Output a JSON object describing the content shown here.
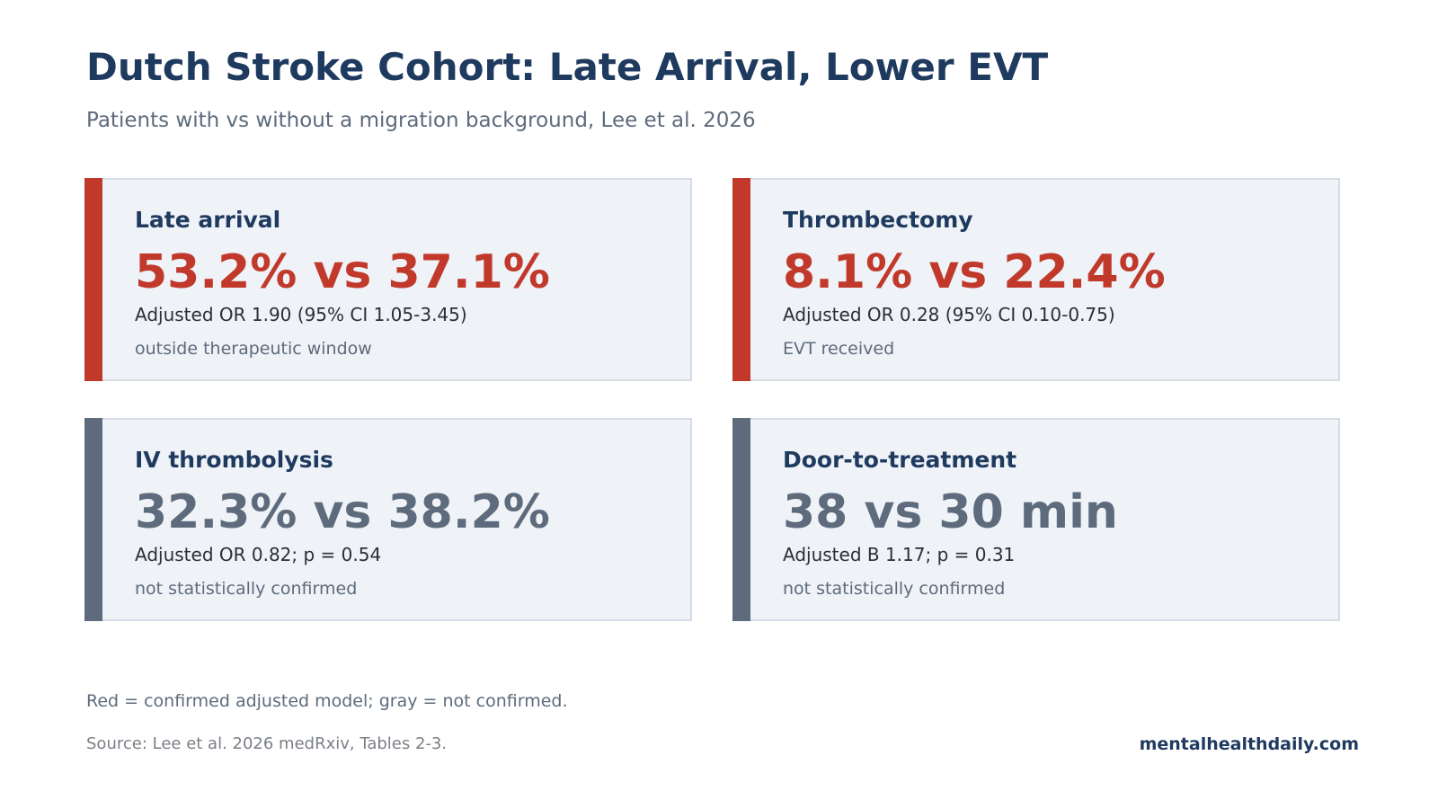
{
  "header": {
    "title": "Dutch Stroke Cohort: Late Arrival, Lower EVT",
    "subtitle": "Patients with vs without a migration background, Lee et al. 2026"
  },
  "colors": {
    "confirmed": "#c0392b",
    "not_confirmed": "#5d6b7c",
    "heading": "#1f3a5f",
    "card_background": "#eff2f7"
  },
  "chart_data": {
    "type": "table",
    "cards": [
      {
        "label": "Late arrival",
        "value": "53.2% vs 37.1%",
        "stat": "Adjusted OR 1.90 (95% CI 1.05-3.45)",
        "note": "outside therapeutic window",
        "confirmed": true
      },
      {
        "label": "Thrombectomy",
        "value": "8.1% vs 22.4%",
        "stat": "Adjusted OR 0.28 (95% CI 0.10-0.75)",
        "note": "EVT received",
        "confirmed": true
      },
      {
        "label": "IV thrombolysis",
        "value": "32.3% vs 38.2%",
        "stat": "Adjusted OR 0.82; p = 0.54",
        "note": "not statistically confirmed",
        "confirmed": false
      },
      {
        "label": "Door-to-treatment",
        "value": "38 vs 30 min",
        "stat": "Adjusted B 1.17; p = 0.31",
        "note": "not statistically confirmed",
        "confirmed": false
      }
    ]
  },
  "footer": {
    "legend_note": "Red = confirmed adjusted model; gray = not confirmed.",
    "source": "Source: Lee et al. 2026 medRxiv, Tables 2-3.",
    "brand": "mentalhealthdaily.com"
  }
}
